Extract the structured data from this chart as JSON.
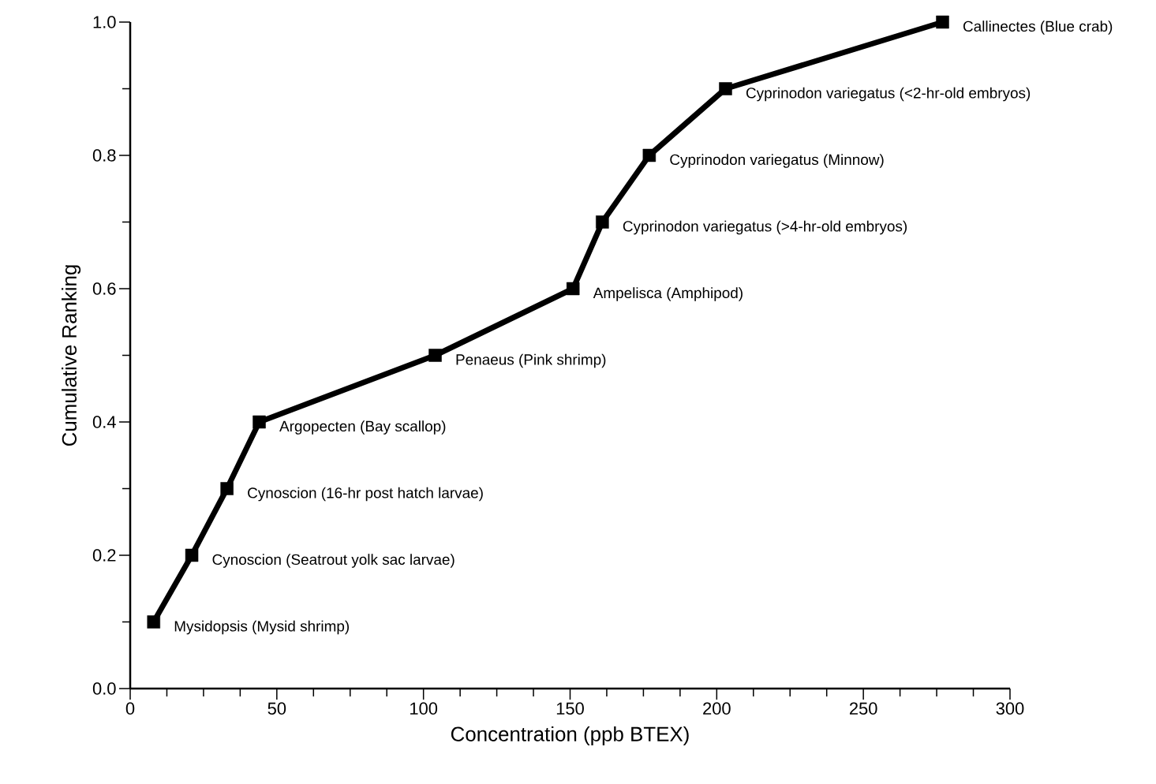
{
  "chart_data": {
    "type": "line",
    "xlabel": "Concentration (ppb BTEX)",
    "ylabel": "Cumulative Ranking",
    "x": [
      8,
      21,
      33,
      44,
      104,
      151,
      161,
      177,
      203,
      277
    ],
    "series": [
      {
        "color": "#000000",
        "values": [
          0.1,
          0.2,
          0.3,
          0.4,
          0.5,
          0.6,
          0.7,
          0.8,
          0.9,
          1.0
        ]
      }
    ],
    "xlim": [
      0,
      300
    ],
    "ylim": [
      0,
      1
    ],
    "xticks": [
      0,
      50,
      100,
      150,
      200,
      250,
      300
    ],
    "yticks": [
      {
        "value": 0,
        "label": "0.0"
      },
      {
        "value": 0.2,
        "label": "0.2"
      },
      {
        "value": 0.4,
        "label": "0.4"
      },
      {
        "value": 0.6,
        "label": "0.6"
      },
      {
        "value": 0.8,
        "label": "0.8"
      },
      {
        "value": 1,
        "label": "1.0"
      }
    ],
    "marker": "square",
    "line_style": "solid",
    "annotations": [
      {
        "text": "Mysidopsis (Mysid shrimp)",
        "x": 8,
        "y": 0.1
      },
      {
        "text": "Cynoscion (Seatrout yolk sac larvae)",
        "x": 21,
        "y": 0.2
      },
      {
        "text": "Cynoscion (16-hr post hatch larvae)",
        "x": 33,
        "y": 0.3
      },
      {
        "text": "Argopecten (Bay scallop)",
        "x": 44,
        "y": 0.4
      },
      {
        "text": "Penaeus (Pink shrimp)",
        "x": 104,
        "y": 0.5
      },
      {
        "text": "Ampelisca (Amphipod)",
        "x": 151,
        "y": 0.6
      },
      {
        "text": "Cyprinodon variegatus (>4-hr-old embryos)",
        "x": 161,
        "y": 0.7
      },
      {
        "text": "Cyprinodon variegatus (Minnow)",
        "x": 177,
        "y": 0.8
      },
      {
        "text": "Cyprinodon variegatus (<2-hr-old embryos)",
        "x": 203,
        "y": 0.9
      },
      {
        "text": "Callinectes (Blue crab)",
        "x": 277,
        "y": 1.0
      }
    ]
  }
}
